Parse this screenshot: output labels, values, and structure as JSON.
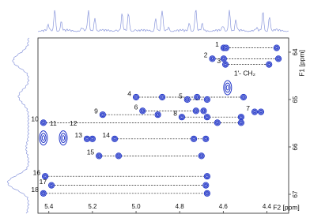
{
  "chart_data": {
    "type": "contour",
    "xlabel": "F2 [ppm]",
    "ylabel": "F1 [ppm]",
    "xlim": [
      5.45,
      4.3
    ],
    "ylim": [
      63.7,
      67.4
    ],
    "xticks": [
      5.4,
      5.2,
      {
        "value": 5.0,
        "label": "5.0"
      },
      4.8,
      4.6,
      4.4
    ],
    "yticks": [
      64,
      65,
      66,
      67
    ],
    "color": "#2438c8",
    "systems": [
      {
        "name": "1",
        "f1": 63.91,
        "f2": [
          4.598,
          4.587,
          4.355
        ]
      },
      {
        "name": "2",
        "f1": 64.14,
        "f2": [
          4.65,
          4.598,
          4.347
        ]
      },
      {
        "name": "3",
        "f1": 64.26,
        "f2": [
          4.59,
          4.39
        ]
      },
      {
        "name": "1'- CH₂",
        "f1": 64.75,
        "f2": [
          4.58
        ]
      },
      {
        "name": "4",
        "f1": 64.95,
        "f2": [
          5.0,
          4.88,
          4.72,
          4.507
        ]
      },
      {
        "name": "5",
        "f1": 65.0,
        "f2": [
          4.765,
          4.674
        ]
      },
      {
        "name": "6",
        "f1": 65.24,
        "f2": [
          4.97,
          4.725,
          4.69
        ]
      },
      {
        "name": "7",
        "f1": 65.26,
        "f2": [
          4.456,
          4.427
        ]
      },
      {
        "name": "8",
        "f1": 65.37,
        "f2": [
          4.79,
          4.674,
          4.518
        ]
      },
      {
        "name": "9",
        "f1": 65.32,
        "f2": [
          5.153,
          4.9
        ]
      },
      {
        "name": "10",
        "f1": 65.49,
        "f2": [
          5.425,
          4.627,
          4.518
        ]
      },
      {
        "name": "11",
        "f1": 65.81,
        "f2": [
          5.425
        ]
      },
      {
        "name": "12",
        "f1": 65.81,
        "f2": [
          5.334
        ]
      },
      {
        "name": "13",
        "f1": 65.83,
        "f2": [
          5.225,
          5.2
        ]
      },
      {
        "name": "14",
        "f1": 65.83,
        "f2": [
          5.098,
          4.735,
          4.68
        ]
      },
      {
        "name": "15",
        "f1": 66.19,
        "f2": [
          5.17,
          5.08,
          4.7
        ]
      },
      {
        "name": "16",
        "f1": 66.62,
        "f2": [
          5.417,
          4.674
        ]
      },
      {
        "name": "17",
        "f1": 66.81,
        "f2": [
          5.388,
          4.68
        ]
      },
      {
        "name": "18",
        "f1": 66.98,
        "f2": [
          5.425,
          4.674
        ]
      }
    ]
  }
}
